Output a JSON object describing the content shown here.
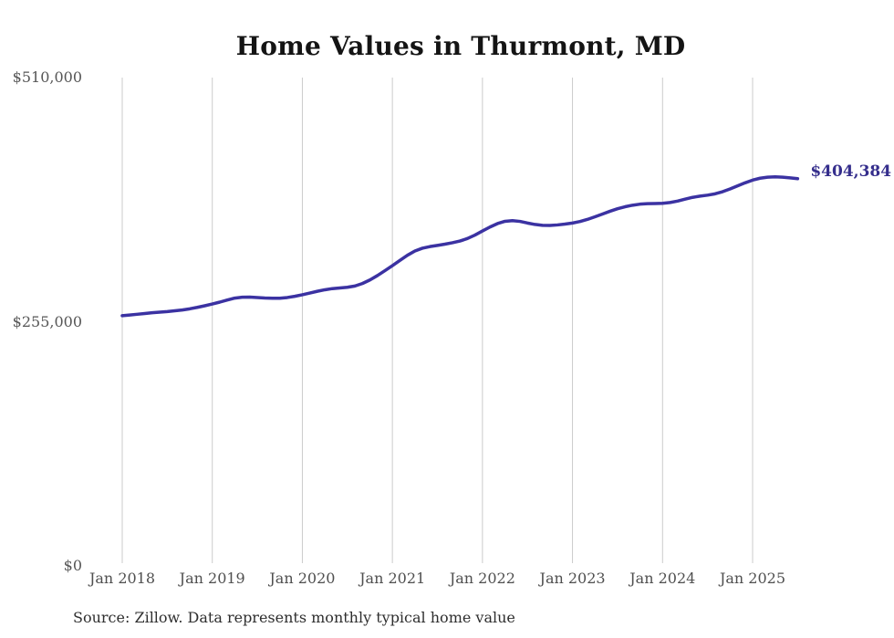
{
  "title": "Home Values in Thurmont, MD",
  "source_note": "Source: Zillow. Data represents monthly typical home value",
  "end_label": "$404,384",
  "y_axis": {
    "labels": [
      "$510,000",
      "$255,000",
      "$0"
    ]
  },
  "x_axis": {
    "labels": [
      "Jan 2018",
      "Jan 2019",
      "Jan 2020",
      "Jan 2021",
      "Jan 2022",
      "Jan 2023",
      "Jan 2024",
      "Jan 2025"
    ]
  },
  "colors": {
    "line": "#3b32a2",
    "end_label": "#352e8c",
    "gridline": "#cbcbcb",
    "axis_text": "#565656",
    "title_text": "#141414",
    "source_text": "#2e2e2e"
  },
  "chart_data": {
    "type": "line",
    "title": "Home Values in Thurmont, MD",
    "series_name": "Monthly typical home value (Zillow)",
    "x_start_month": "2018-01",
    "x_end_month": "2025-07",
    "x_tick_labels": [
      "Jan 2018",
      "Jan 2019",
      "Jan 2020",
      "Jan 2021",
      "Jan 2022",
      "Jan 2023",
      "Jan 2024",
      "Jan 2025"
    ],
    "y_ticks": [
      0,
      255000,
      510000
    ],
    "ylim": [
      0,
      510000
    ],
    "grid": "vertical-only",
    "legend": "none",
    "final_value": 404384,
    "final_value_label": "$404,384",
    "monthly_values": [
      261300,
      262000,
      262800,
      263600,
      264400,
      265000,
      265600,
      266400,
      267300,
      268500,
      270000,
      271700,
      273500,
      275500,
      277700,
      279700,
      280600,
      280700,
      280300,
      279800,
      279500,
      279500,
      280300,
      281600,
      283200,
      285000,
      286800,
      288400,
      289600,
      290300,
      291000,
      292300,
      294900,
      298600,
      303200,
      308300,
      313600,
      319100,
      324400,
      328900,
      331800,
      333500,
      334700,
      336000,
      337500,
      339300,
      341900,
      345500,
      349800,
      353900,
      357500,
      359900,
      360600,
      359800,
      358100,
      356600,
      355700,
      355600,
      356100,
      357000,
      358100,
      359700,
      361900,
      364600,
      367500,
      370400,
      373000,
      375100,
      376700,
      377800,
      378300,
      378500,
      378700,
      379500,
      381000,
      383000,
      384900,
      386200,
      387200,
      388600,
      390800,
      393700,
      396900,
      400100,
      402900,
      404900,
      406000,
      406300,
      406000,
      405300,
      404384
    ]
  }
}
